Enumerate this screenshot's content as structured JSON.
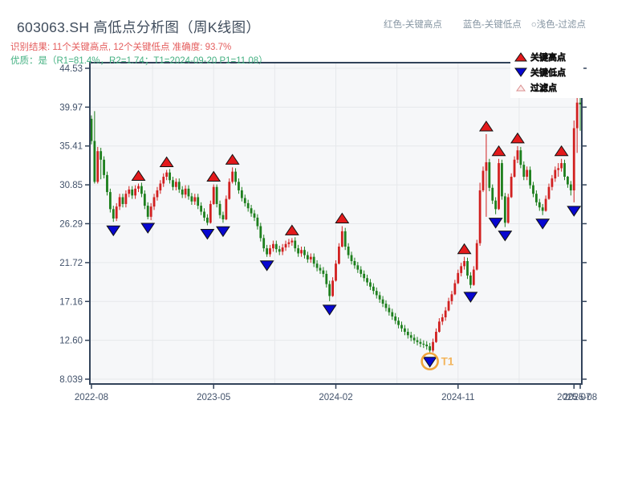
{
  "header": {
    "title": "603063.SH 高低点分析图（周K线图）",
    "subtitle_result": "识别结果: 11个关键高点, 12个关键低点  准确度: 93.7%",
    "subtitle_quality": "优质：是（R1=81.4%，R2=1.74；T1=2024-09-20 P1=11.08）",
    "top_legend_items": [
      "红色-关键高点",
      "蓝色-关键低点",
      "○浅色-过滤点"
    ]
  },
  "colors": {
    "up": "#d12020",
    "down": "#1d7f1d",
    "key_high": "#e31a1c",
    "key_low": "#0707d0",
    "marker_edge": "#111111",
    "filter_fill": "#fdecec",
    "filter_edge": "#d98f8f",
    "axis": "#32435a",
    "grid": "#e6e8eb",
    "plot_bg": "#f6f7f9",
    "tick_label": "#42526b",
    "legend_text": "#2a333d",
    "legend_muted": "#b4bcc3",
    "t1_ring": "#f0a53c",
    "t1_text": "#f3b45a"
  },
  "chart_data": {
    "type": "candlestick",
    "timeframe": "weekly",
    "title": "603063.SH 高低点分析图（周K线图）",
    "ylim": [
      8.039,
      44.53
    ],
    "y_tick_values": [
      44.53,
      39.97,
      35.41,
      30.85,
      26.29,
      21.72,
      17.16,
      12.6,
      8.039
    ],
    "y_tick_labels": [
      "44.53",
      "39.97",
      "35.41",
      "30.85",
      "26.29",
      "21.72",
      "17.16",
      "12.60",
      "8.039"
    ],
    "x_tick_labels": [
      "2022-08",
      "2023-05",
      "2024-02",
      "2024-11",
      "2025-07",
      "2025-08"
    ],
    "x_tick_weeks": [
      0,
      39,
      78,
      117,
      154,
      156
    ],
    "x_grid_weeks": [
      19.5,
      39,
      58.5,
      78,
      97.5,
      117,
      136.5
    ],
    "first_open": 38.6,
    "candles": [
      [
        39.0,
        35.6,
        36.0
      ],
      [
        39.5,
        31.0,
        31.2
      ],
      [
        35.3,
        31.0,
        34.8
      ],
      [
        35.2,
        31.5,
        33.8
      ],
      [
        34.2,
        31.6,
        32.0
      ],
      [
        32.4,
        29.6,
        30.0
      ],
      [
        30.4,
        27.6,
        28.0
      ],
      [
        28.4,
        26.5,
        26.9
      ],
      [
        28.7,
        26.6,
        28.3
      ],
      [
        29.8,
        27.9,
        29.4
      ],
      [
        29.8,
        28.2,
        28.6
      ],
      [
        30.2,
        28.2,
        29.8
      ],
      [
        30.7,
        29.4,
        30.3
      ],
      [
        30.7,
        29.2,
        29.6
      ],
      [
        30.8,
        29.2,
        30.4
      ],
      [
        31.0,
        30.0,
        30.7
      ],
      [
        31.1,
        29.4,
        29.8
      ],
      [
        30.2,
        28.0,
        28.4
      ],
      [
        28.8,
        26.8,
        27.1
      ],
      [
        28.7,
        26.7,
        28.3
      ],
      [
        29.8,
        27.9,
        29.4
      ],
      [
        30.6,
        29.0,
        30.2
      ],
      [
        31.4,
        29.8,
        31.0
      ],
      [
        32.2,
        30.6,
        31.8
      ],
      [
        32.6,
        31.4,
        32.3
      ],
      [
        32.7,
        31.0,
        31.4
      ],
      [
        31.8,
        30.2,
        30.6
      ],
      [
        31.6,
        30.2,
        31.2
      ],
      [
        31.6,
        29.9,
        30.3
      ],
      [
        30.7,
        29.3,
        29.7
      ],
      [
        30.8,
        29.3,
        30.4
      ],
      [
        30.8,
        29.1,
        29.5
      ],
      [
        29.9,
        28.5,
        28.9
      ],
      [
        29.8,
        28.5,
        29.4
      ],
      [
        29.8,
        28.0,
        28.4
      ],
      [
        28.8,
        27.3,
        27.7
      ],
      [
        28.1,
        26.6,
        27.0
      ],
      [
        27.4,
        26.1,
        26.4
      ],
      [
        29.0,
        26.3,
        28.6
      ],
      [
        30.9,
        28.5,
        30.6
      ],
      [
        30.9,
        28.2,
        28.6
      ],
      [
        29.0,
        26.9,
        27.3
      ],
      [
        27.7,
        26.4,
        26.8
      ],
      [
        29.6,
        26.7,
        29.2
      ],
      [
        31.6,
        29.1,
        31.2
      ],
      [
        32.9,
        31.0,
        32.4
      ],
      [
        32.8,
        30.8,
        31.2
      ],
      [
        31.6,
        29.8,
        30.2
      ],
      [
        30.6,
        28.9,
        29.3
      ],
      [
        29.7,
        28.3,
        28.7
      ],
      [
        29.1,
        27.7,
        28.1
      ],
      [
        28.5,
        27.1,
        27.5
      ],
      [
        27.9,
        26.6,
        27.0
      ],
      [
        27.4,
        25.6,
        26.0
      ],
      [
        26.4,
        24.2,
        24.6
      ],
      [
        25.0,
        23.0,
        23.4
      ],
      [
        23.8,
        22.4,
        22.7
      ],
      [
        23.8,
        22.4,
        23.4
      ],
      [
        24.3,
        23.0,
        23.9
      ],
      [
        24.3,
        22.9,
        23.3
      ],
      [
        23.7,
        22.6,
        23.0
      ],
      [
        23.9,
        22.6,
        23.5
      ],
      [
        24.3,
        23.1,
        23.9
      ],
      [
        24.5,
        23.5,
        24.1
      ],
      [
        24.6,
        23.7,
        24.3
      ],
      [
        24.7,
        23.0,
        23.4
      ],
      [
        23.8,
        22.4,
        22.8
      ],
      [
        23.6,
        22.4,
        23.2
      ],
      [
        23.6,
        22.2,
        22.6
      ],
      [
        23.0,
        21.7,
        22.1
      ],
      [
        22.8,
        21.7,
        22.4
      ],
      [
        22.8,
        21.2,
        21.6
      ],
      [
        22.0,
        20.7,
        21.1
      ],
      [
        21.5,
        20.4,
        20.8
      ],
      [
        21.2,
        20.0,
        20.4
      ],
      [
        20.8,
        18.8,
        19.2
      ],
      [
        19.6,
        17.2,
        17.8
      ],
      [
        20.0,
        17.7,
        19.6
      ],
      [
        22.0,
        19.5,
        21.6
      ],
      [
        24.0,
        21.5,
        23.6
      ],
      [
        26.0,
        23.5,
        25.4
      ],
      [
        25.8,
        23.2,
        23.6
      ],
      [
        24.0,
        22.2,
        22.6
      ],
      [
        23.0,
        21.5,
        21.9
      ],
      [
        22.3,
        21.0,
        21.4
      ],
      [
        21.8,
        20.5,
        20.9
      ],
      [
        21.3,
        20.0,
        20.4
      ],
      [
        20.8,
        19.5,
        19.9
      ],
      [
        20.3,
        19.0,
        19.4
      ],
      [
        19.8,
        18.5,
        18.9
      ],
      [
        19.3,
        18.0,
        18.4
      ],
      [
        18.8,
        17.5,
        17.9
      ],
      [
        18.3,
        17.0,
        17.4
      ],
      [
        17.8,
        16.5,
        16.9
      ],
      [
        17.3,
        16.0,
        16.4
      ],
      [
        16.8,
        15.5,
        15.9
      ],
      [
        16.3,
        15.0,
        15.4
      ],
      [
        15.8,
        14.5,
        14.9
      ],
      [
        15.3,
        14.0,
        14.4
      ],
      [
        14.8,
        13.6,
        14.0
      ],
      [
        14.4,
        13.2,
        13.6
      ],
      [
        14.0,
        12.8,
        13.2
      ],
      [
        13.6,
        12.5,
        12.9
      ],
      [
        13.3,
        12.2,
        12.6
      ],
      [
        13.0,
        12.0,
        12.4
      ],
      [
        12.8,
        11.8,
        12.2
      ],
      [
        12.6,
        11.7,
        12.1
      ],
      [
        12.5,
        11.5,
        11.9
      ],
      [
        12.3,
        11.08,
        11.4
      ],
      [
        12.8,
        11.2,
        12.4
      ],
      [
        14.0,
        12.3,
        13.6
      ],
      [
        15.2,
        13.5,
        14.8
      ],
      [
        15.7,
        14.4,
        15.3
      ],
      [
        16.5,
        14.9,
        16.1
      ],
      [
        17.6,
        16.0,
        17.2
      ],
      [
        18.4,
        16.8,
        18.0
      ],
      [
        19.7,
        17.9,
        19.3
      ],
      [
        20.9,
        19.2,
        20.5
      ],
      [
        21.7,
        20.1,
        21.3
      ],
      [
        22.4,
        20.9,
        21.9
      ],
      [
        22.3,
        19.8,
        20.2
      ],
      [
        20.6,
        18.7,
        19.1
      ],
      [
        21.3,
        19.0,
        20.9
      ],
      [
        24.4,
        20.8,
        24.0
      ],
      [
        31.1,
        23.7,
        30.2
      ],
      [
        33.0,
        30.0,
        32.5
      ],
      [
        36.8,
        27.1,
        33.5
      ],
      [
        33.9,
        30.1,
        30.5
      ],
      [
        30.9,
        28.6,
        29.0
      ],
      [
        29.4,
        27.4,
        28.0
      ],
      [
        33.9,
        27.9,
        33.4
      ],
      [
        33.8,
        29.1,
        29.5
      ],
      [
        29.9,
        25.9,
        26.4
      ],
      [
        29.8,
        26.3,
        29.4
      ],
      [
        32.2,
        29.3,
        31.8
      ],
      [
        34.2,
        31.7,
        33.8
      ],
      [
        35.4,
        33.4,
        34.9
      ],
      [
        35.3,
        32.8,
        33.2
      ],
      [
        33.6,
        31.4,
        31.8
      ],
      [
        33.0,
        31.4,
        32.6
      ],
      [
        33.0,
        30.4,
        30.8
      ],
      [
        31.2,
        29.4,
        29.8
      ],
      [
        30.2,
        28.4,
        28.8
      ],
      [
        29.2,
        27.8,
        28.2
      ],
      [
        28.6,
        27.3,
        27.8
      ],
      [
        29.6,
        27.7,
        29.2
      ],
      [
        31.0,
        29.1,
        30.6
      ],
      [
        32.0,
        30.2,
        31.6
      ],
      [
        33.0,
        31.2,
        32.6
      ],
      [
        33.4,
        31.8,
        32.8
      ],
      [
        33.9,
        32.4,
        33.4
      ],
      [
        33.8,
        31.4,
        31.8
      ],
      [
        31.9,
        30.5,
        30.9
      ],
      [
        31.3,
        29.6,
        30.2
      ],
      [
        38.4,
        28.8,
        37.5
      ],
      [
        41.5,
        34.6,
        40.5
      ],
      [
        41.3,
        37.2,
        40.3
      ]
    ],
    "key_high_weeks": [
      15,
      24,
      39,
      45,
      64,
      80,
      119,
      126,
      130,
      136,
      150
    ],
    "key_low_weeks": [
      7,
      18,
      37,
      42,
      56,
      76,
      108,
      121,
      129,
      132,
      144,
      154
    ],
    "t1": {
      "week": 108,
      "label": "T1",
      "date": "2024-09-20",
      "price": 11.08
    },
    "legend": {
      "items": [
        {
          "label": "关键高点",
          "marker": "triangle-up"
        },
        {
          "label": "关键低点",
          "marker": "triangle-down"
        },
        {
          "label": "过滤点",
          "marker": "triangle-up-outline"
        }
      ]
    }
  }
}
